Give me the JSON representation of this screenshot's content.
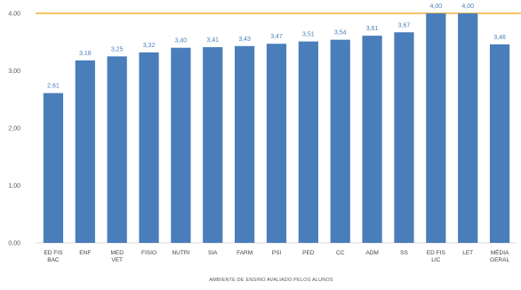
{
  "chart_data": {
    "type": "bar",
    "title": "",
    "xlabel": "AMBIENTE DE ENSINO AVALIADO PELOS ALUNOS",
    "ylabel": "",
    "ylim": [
      0,
      4
    ],
    "y_ticks": [
      "0,00",
      "1,00",
      "2,00",
      "3,00",
      "4,00"
    ],
    "y_tick_values": [
      0,
      1,
      2,
      3,
      4
    ],
    "grid": false,
    "reference_line": {
      "value": 4,
      "color": "#f2b134"
    },
    "bar_color": "#4a7ebb",
    "categories": [
      [
        "ED FIS",
        "BAC"
      ],
      [
        "ENF"
      ],
      [
        "MED",
        "VET"
      ],
      [
        "FISIO"
      ],
      [
        "NUTRI"
      ],
      [
        "SIA"
      ],
      [
        "FARM"
      ],
      [
        "PSI"
      ],
      [
        "PED"
      ],
      [
        "CC"
      ],
      [
        "ADM"
      ],
      [
        "SS"
      ],
      [
        "ED FIS",
        "LIC"
      ],
      [
        "LET"
      ],
      [
        "MÉDIA",
        "GERAL"
      ]
    ],
    "values": [
      2.61,
      3.18,
      3.25,
      3.32,
      3.4,
      3.41,
      3.43,
      3.47,
      3.51,
      3.54,
      3.61,
      3.67,
      4.0,
      4.0,
      3.46
    ],
    "value_labels": [
      "2,61",
      "3,18",
      "3,25",
      "3,32",
      "3,40",
      "3,41",
      "3,43",
      "3,47",
      "3,51",
      "3,54",
      "3,61",
      "3,67",
      "4,00",
      "4,00",
      "3,46"
    ]
  }
}
